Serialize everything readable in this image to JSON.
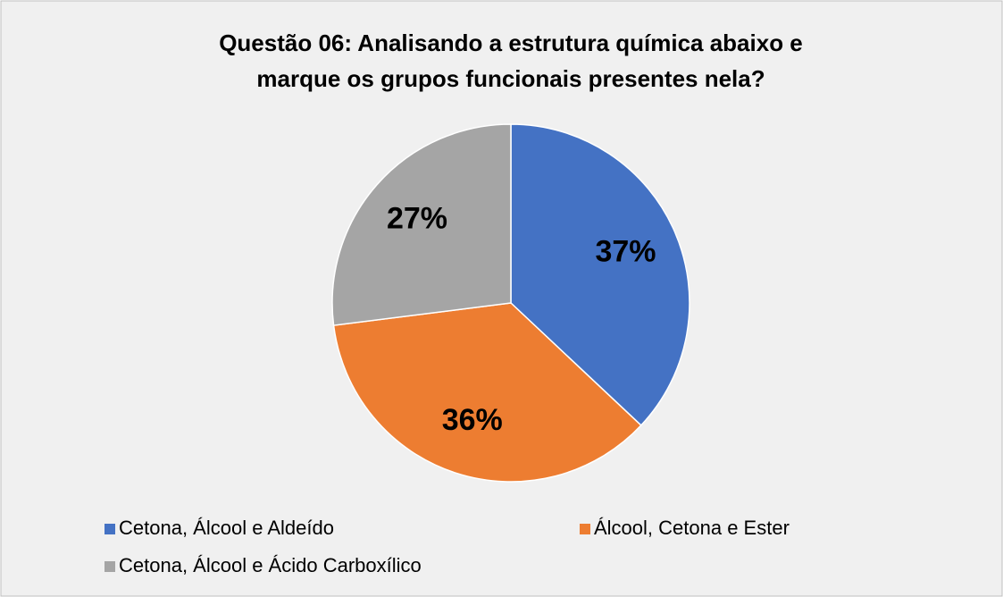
{
  "chart_data": {
    "type": "pie",
    "title": [
      "Questão 06: Analisando a estrutura química abaixo e",
      "marque os  grupos funcionais presentes nela?"
    ],
    "categories": [
      "Cetona, Álcool e Aldeído",
      "Álcool, Cetona e Ester",
      "Cetona, Álcool e Ácido Carboxílico"
    ],
    "values": [
      37,
      36,
      27
    ],
    "value_labels": [
      "37%",
      "36%",
      "27%"
    ],
    "colors": [
      "#4472c4",
      "#ed7d31",
      "#a5a5a5"
    ],
    "legend": "bottom"
  }
}
